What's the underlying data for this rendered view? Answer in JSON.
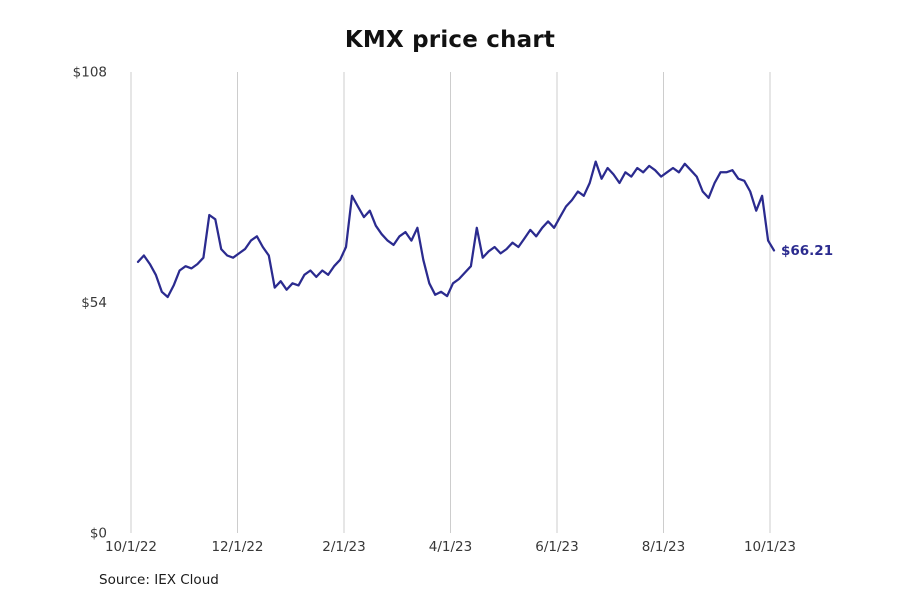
{
  "header": {
    "title": "KMX price chart"
  },
  "footer": {
    "source": "Source: IEX Cloud"
  },
  "chart_data": {
    "type": "line",
    "title": "KMX price chart",
    "xlabel": "",
    "ylabel": "",
    "ylim": [
      0,
      108
    ],
    "grid": "vertical",
    "legend": "none",
    "y_ticks": [
      {
        "value": 0,
        "label": "$0"
      },
      {
        "value": 54,
        "label": "$54"
      },
      {
        "value": 108,
        "label": "$108"
      }
    ],
    "x_ticks": [
      "10/1/22",
      "12/1/22",
      "2/1/23",
      "4/1/23",
      "6/1/23",
      "8/1/23",
      "10/1/23"
    ],
    "end_label": "$66.21",
    "last_value": 66.21,
    "colors": {
      "line": "#2b2b8f",
      "grid": "#cdcdcd",
      "tick_text": "#383838",
      "end_label": "#2b2b8f"
    },
    "series": [
      {
        "name": "KMX",
        "start_date": "10/1/22",
        "end_date": "10/1/23",
        "values": [
          63.5,
          65,
          63,
          60.5,
          56.5,
          55.3,
          58,
          61.5,
          62.5,
          62,
          63,
          64.5,
          74.5,
          73.5,
          66.5,
          65,
          64.5,
          65.5,
          66.5,
          68.5,
          69.5,
          67,
          65,
          57.5,
          59,
          57,
          58.5,
          58,
          60.5,
          61.5,
          60,
          61.5,
          60.5,
          62.5,
          64,
          67,
          79,
          76.5,
          74,
          75.5,
          72,
          70,
          68.5,
          67.5,
          69.5,
          70.5,
          68.5,
          71.5,
          64,
          58.5,
          55.8,
          56.5,
          55.5,
          58.5,
          59.5,
          61,
          62.5,
          71.5,
          64.5,
          66,
          67,
          65.5,
          66.5,
          68,
          67,
          69,
          71,
          69.5,
          71.5,
          73,
          71.5,
          74,
          76.5,
          78,
          80,
          79,
          82,
          87,
          83,
          85.5,
          84,
          82,
          84.5,
          83.5,
          85.5,
          84.5,
          86,
          85,
          83.5,
          84.5,
          85.5,
          84.5,
          86.5,
          85,
          83.5,
          80,
          78.5,
          82,
          84.5,
          84.5,
          85,
          83,
          82.5,
          80,
          75.5,
          79,
          68.5,
          66.21
        ]
      }
    ]
  }
}
